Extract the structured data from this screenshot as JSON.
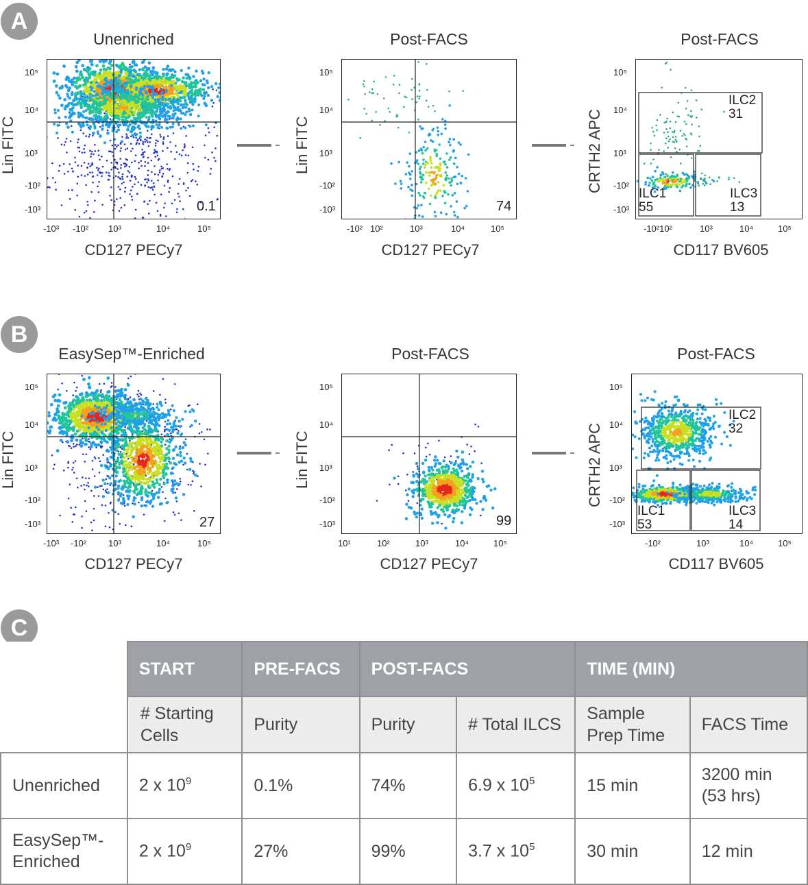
{
  "panel_a": {
    "label": "A",
    "plots": [
      {
        "title": "Unenriched",
        "ylabel": "Lin FITC",
        "xlabel": "CD127 PECy7",
        "xticks": [
          "-10³",
          "-10²",
          "10³",
          "10⁴",
          "10⁵"
        ],
        "yticks": [
          "10⁵",
          "10⁴",
          "10³",
          "-10²",
          "-10³"
        ],
        "percent": "0.1"
      },
      {
        "title": "Post-FACS",
        "ylabel": "Lin FITC",
        "xlabel": "CD127 PECy7",
        "xticks": [
          "-10²",
          "10²",
          "10³",
          "10⁴",
          "10⁵"
        ],
        "yticks": [
          "10⁵",
          "10⁴",
          "10³",
          "-10²",
          "-10³"
        ],
        "percent": "74"
      },
      {
        "title": "Post-FACS",
        "ylabel": "CRTH2 APC",
        "xlabel": "CD117 BV605",
        "xticks": [
          "-10²10²",
          "10³",
          "10⁴",
          "10⁵"
        ],
        "yticks": [
          "10⁵",
          "10⁴",
          "10³",
          "-10²",
          "-10³"
        ],
        "gates": [
          {
            "name": "ILC2",
            "value": "31"
          },
          {
            "name": "ILC1",
            "value": "55"
          },
          {
            "name": "ILC3",
            "value": "13"
          }
        ]
      }
    ]
  },
  "panel_b": {
    "label": "B",
    "plots": [
      {
        "title": "EasySep™-Enriched",
        "ylabel": "Lin FITC",
        "xlabel": "CD127 PECy7",
        "xticks": [
          "-10³",
          "-10²",
          "10³",
          "10⁴",
          "10⁵"
        ],
        "yticks": [
          "10⁵",
          "10⁴",
          "10³",
          "-10²",
          "-10³"
        ],
        "percent": "27"
      },
      {
        "title": "Post-FACS",
        "ylabel": "Lin FITC",
        "xlabel": "CD127 PECy7",
        "xticks": [
          "10¹",
          "10²",
          "10³",
          "10⁴",
          "10⁵"
        ],
        "yticks": [
          "10⁵",
          "10⁴",
          "10³",
          "-10²",
          "-10³"
        ],
        "percent": "99"
      },
      {
        "title": "Post-FACS",
        "ylabel": "CRTH2 APC",
        "xlabel": "CD117 BV605",
        "xticks": [
          "-10²",
          "10³",
          "10⁴",
          "10⁵"
        ],
        "yticks": [
          "10⁵",
          "10⁴",
          "10³",
          "-10²",
          "-10³"
        ],
        "gates": [
          {
            "name": "ILC2",
            "value": "32"
          },
          {
            "name": "ILC1",
            "value": "53"
          },
          {
            "name": "ILC3",
            "value": "14"
          }
        ]
      }
    ]
  },
  "panel_c": {
    "label": "C",
    "groups": [
      "START",
      "PRE-FACS",
      "POST-FACS",
      "TIME (MIN)"
    ],
    "columns": [
      "# Starting Cells",
      "Purity",
      "Purity",
      "# Total ILCS",
      "Sample Prep Time",
      "FACS Time"
    ],
    "rows": [
      {
        "label": "Unenriched",
        "start_base": "2 x 10",
        "start_exp": "9",
        "pre_purity": "0.1%",
        "post_purity": "74%",
        "total_base": "6.9 x 10",
        "total_exp": "5",
        "prep": "15 min",
        "facs": "3200 min (53 hrs)"
      },
      {
        "label": "EasySep™-Enriched",
        "start_base": "2 x 10",
        "start_exp": "9",
        "pre_purity": "27%",
        "post_purity": "99%",
        "total_base": "3.7 x 10",
        "total_exp": "5",
        "prep": "30 min",
        "facs": "12 min"
      }
    ]
  },
  "colors": {
    "badge": "#9a9a9a",
    "header_dark": "#9ea1a5",
    "header_light": "#ececec"
  }
}
